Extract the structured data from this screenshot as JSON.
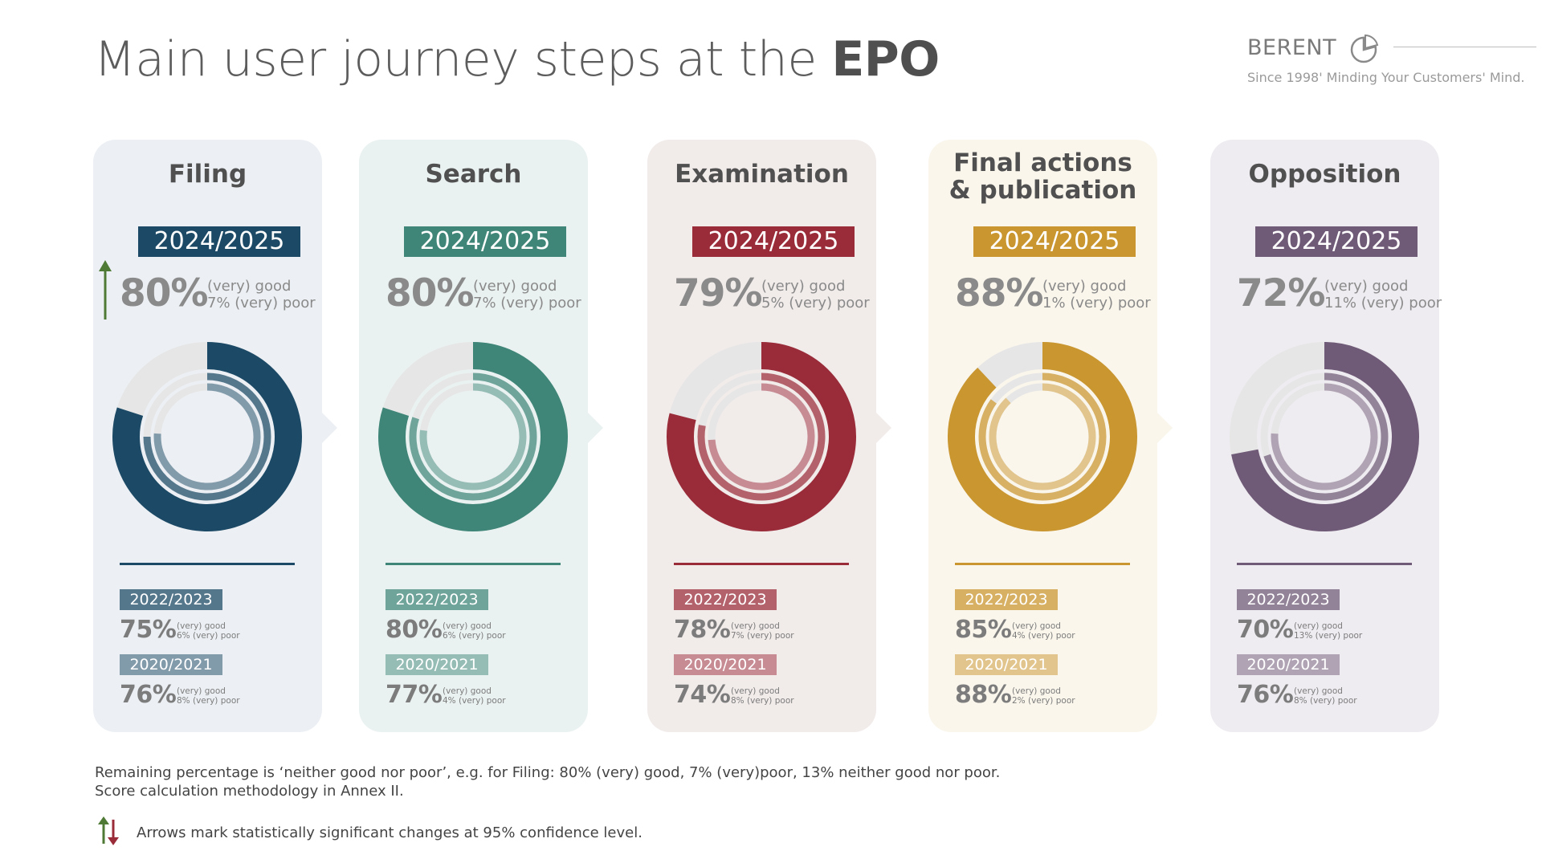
{
  "title": {
    "prefix": "Main user journey steps at the ",
    "bold": "EPO"
  },
  "logo": {
    "name": "BERENT",
    "tagline": "Since 1998' Minding Your Customers' Mind."
  },
  "colors": {
    "filing": "#1c4a66",
    "search": "#3f8678",
    "examination": "#9a2c3a",
    "final": "#c9962f",
    "opposition": "#6f5a77"
  },
  "chart_data": {
    "type": "donut",
    "categories": [
      "Filing",
      "Search",
      "Examination",
      "Final actions & publication",
      "Opposition"
    ],
    "series": [
      {
        "name": "2024/2025",
        "good": [
          80,
          80,
          79,
          88,
          72
        ],
        "poor": [
          7,
          7,
          5,
          1,
          11
        ]
      },
      {
        "name": "2022/2023",
        "good": [
          75,
          80,
          78,
          85,
          70
        ],
        "poor": [
          6,
          6,
          7,
          4,
          13
        ]
      },
      {
        "name": "2020/2021",
        "good": [
          76,
          77,
          74,
          88,
          76
        ],
        "poor": [
          8,
          4,
          8,
          2,
          8
        ]
      }
    ]
  },
  "cards": [
    {
      "step": "Filing",
      "color": "#1c4a66",
      "bg": "#ecf0f4",
      "main": {
        "year": "2024/2025",
        "score": "80%",
        "good": "(very) good",
        "poor": "7% (very) poor",
        "value": 80
      },
      "prev1": {
        "year": "2022/2023",
        "score": "75%",
        "good": "(very) good",
        "poor": "6% (very) poor",
        "value": 75
      },
      "prev2": {
        "year": "2020/2021",
        "score": "76%",
        "good": "(very) good",
        "poor": "8% (very) poor",
        "value": 76
      },
      "arrow": "up"
    },
    {
      "step": "Search",
      "color": "#3f8678",
      "bg": "#eaf2f1",
      "main": {
        "year": "2024/2025",
        "score": "80%",
        "good": "(very) good",
        "poor": "7% (very) poor",
        "value": 80
      },
      "prev1": {
        "year": "2022/2023",
        "score": "80%",
        "good": "(very) good",
        "poor": "6% (very) poor",
        "value": 80
      },
      "prev2": {
        "year": "2020/2021",
        "score": "77%",
        "good": "(very) good",
        "poor": "4% (very) poor",
        "value": 77
      },
      "arrow": ""
    },
    {
      "step": "Examination",
      "color": "#9a2c3a",
      "bg": "#f1ebea",
      "main": {
        "year": "2024/2025",
        "score": "79%",
        "good": "(very) good",
        "poor": "5% (very) poor",
        "value": 79
      },
      "prev1": {
        "year": "2022/2023",
        "score": "78%",
        "good": "(very) good",
        "poor": "7% (very) poor",
        "value": 78
      },
      "prev2": {
        "year": "2020/2021",
        "score": "74%",
        "good": "(very) good",
        "poor": "8% (very) poor",
        "value": 74
      },
      "arrow": ""
    },
    {
      "step": "Final actions & publication",
      "color": "#c9962f",
      "bg": "#faf6ec",
      "main": {
        "year": "2024/2025",
        "score": "88%",
        "good": "(very) good",
        "poor": "1% (very) poor",
        "value": 88
      },
      "prev1": {
        "year": "2022/2023",
        "score": "85%",
        "good": "(very) good",
        "poor": "4% (very) poor",
        "value": 85
      },
      "prev2": {
        "year": "2020/2021",
        "score": "88%",
        "good": "(very) good",
        "poor": "2% (very) poor",
        "value": 88
      },
      "arrow": ""
    },
    {
      "step": "Opposition",
      "color": "#6f5a77",
      "bg": "#efecf1",
      "main": {
        "year": "2024/2025",
        "score": "72%",
        "good": "(very) good",
        "poor": "11% (very) poor",
        "value": 72
      },
      "prev1": {
        "year": "2022/2023",
        "score": "70%",
        "good": "(very) good",
        "poor": "13% (very) poor",
        "value": 70
      },
      "prev2": {
        "year": "2020/2021",
        "score": "76%",
        "good": "(very) good",
        "poor": "8% (very) poor",
        "value": 76
      },
      "arrow": ""
    }
  ],
  "footnotes": {
    "line1": "Remaining percentage is ‘neither good nor poor’, e.g. for Filing: 80% (very) good, 7% (very)poor, 13% neither good nor poor.",
    "line2": "Score calculation methodology in Annex II.",
    "legend": "Arrows mark statistically significant changes at 95% confidence level."
  }
}
